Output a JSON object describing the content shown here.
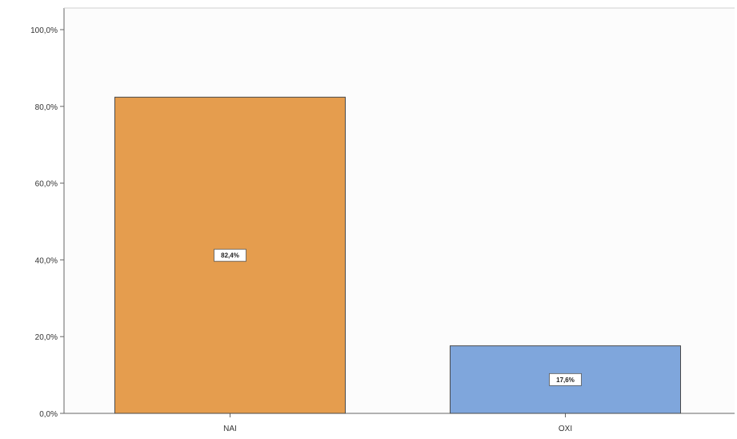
{
  "chart_data": {
    "type": "bar",
    "title": "",
    "xlabel": "",
    "ylabel": "",
    "categories": [
      "NAI",
      "OXI"
    ],
    "values": [
      82.4,
      17.6
    ],
    "data_labels": [
      "82,4%",
      "17,6%"
    ],
    "colors": [
      "#e59d4e",
      "#7fa6dc"
    ],
    "ylim": [
      0,
      100
    ],
    "yticks": [
      0,
      20,
      40,
      60,
      80,
      100
    ],
    "ytick_labels": [
      "0,0%",
      "20,0%",
      "40,0%",
      "60,0%",
      "80,0%",
      "100,0%"
    ],
    "grid": false,
    "legend": "none"
  }
}
